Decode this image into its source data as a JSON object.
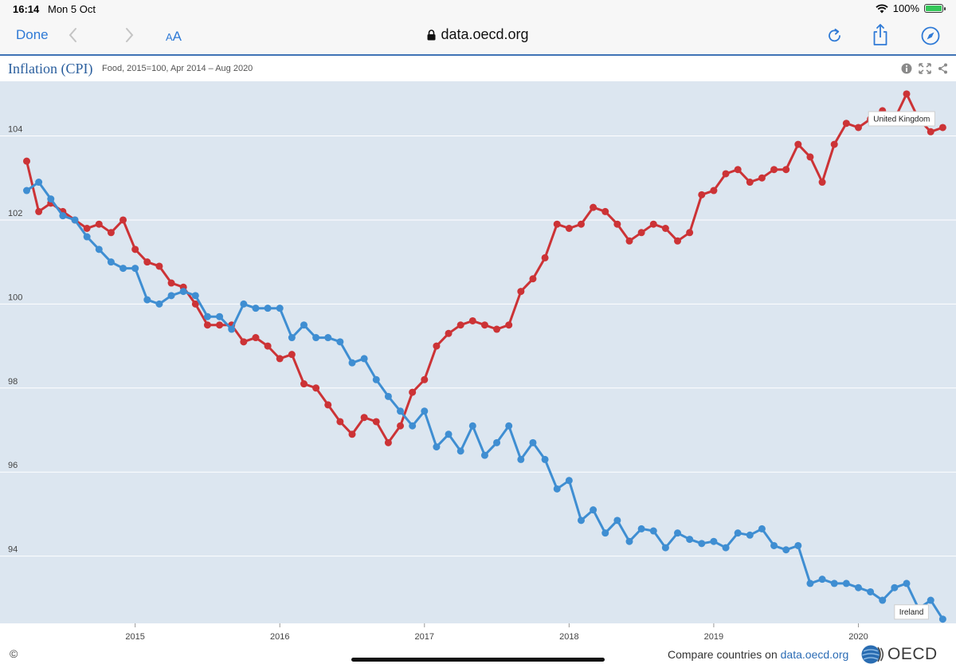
{
  "status_bar": {
    "time": "16:14",
    "date": "Mon 5 Oct",
    "battery": "100%"
  },
  "toolbar": {
    "done_label": "Done",
    "text_size_small": "A",
    "text_size_big": "A",
    "url": "data.oecd.org"
  },
  "chart_header": {
    "title": "Inflation (CPI)",
    "subtitle": "Food, 2015=100, Apr 2014 – Aug 2020"
  },
  "footer": {
    "copyright": "©",
    "compare_text": "Compare countries on ",
    "compare_link": "data.oecd.org",
    "logo_text": "OECD"
  },
  "colors": {
    "uk": "#cc3336",
    "ireland": "#3f8ed2",
    "plot_bg": "#dce6f0",
    "accent": "#2f7ad6"
  },
  "icons": {
    "wifi": "wifi-icon",
    "battery": "battery-icon",
    "lock": "lock-icon",
    "reload": "reload-icon",
    "share": "share-icon",
    "compass": "compass-icon",
    "info": "info-icon",
    "fullscreen": "fullscreen-icon",
    "share_small": "share-icon"
  },
  "chart_data": {
    "type": "line",
    "title": "Inflation (CPI)",
    "subtitle": "Food, 2015=100, Apr 2014 – Aug 2020",
    "x_start": "2014-04",
    "x_ticks": [
      "2015",
      "2016",
      "2017",
      "2018",
      "2019",
      "2020"
    ],
    "y_ticks": [
      94,
      96,
      98,
      100,
      102,
      104
    ],
    "ylim": [
      92.4,
      105.3
    ],
    "grid": true,
    "series": [
      {
        "name": "United Kingdom",
        "color": "#cc3336",
        "values": [
          103.4,
          102.2,
          102.4,
          102.2,
          102.0,
          101.8,
          101.9,
          101.7,
          102.0,
          101.3,
          101.0,
          100.9,
          100.5,
          100.4,
          100.0,
          99.5,
          99.5,
          99.5,
          99.1,
          99.2,
          99.0,
          98.7,
          98.8,
          98.1,
          98.0,
          97.6,
          97.2,
          96.9,
          97.3,
          97.2,
          96.7,
          97.1,
          97.9,
          98.2,
          99.0,
          99.3,
          99.5,
          99.6,
          99.5,
          99.4,
          99.5,
          100.3,
          100.6,
          101.1,
          101.9,
          101.8,
          101.9,
          102.3,
          102.2,
          101.9,
          101.5,
          101.7,
          101.9,
          101.8,
          101.5,
          101.7,
          102.6,
          102.7,
          103.1,
          103.2,
          102.9,
          103.0,
          103.2,
          103.2,
          103.8,
          103.5,
          102.9,
          103.8,
          104.3,
          104.2,
          104.4,
          104.6,
          104.4,
          105.0,
          104.4,
          104.1,
          104.2
        ]
      },
      {
        "name": "Ireland",
        "color": "#3f8ed2",
        "values": [
          102.7,
          102.9,
          102.5,
          102.1,
          102.0,
          101.6,
          101.3,
          101.0,
          100.85,
          100.85,
          100.1,
          100.0,
          100.2,
          100.3,
          100.2,
          99.7,
          99.7,
          99.4,
          100.0,
          99.9,
          99.9,
          99.9,
          99.2,
          99.5,
          99.2,
          99.2,
          99.1,
          98.6,
          98.7,
          98.2,
          97.8,
          97.45,
          97.1,
          97.45,
          96.6,
          96.9,
          96.5,
          97.1,
          96.4,
          96.7,
          97.1,
          96.3,
          96.7,
          96.3,
          95.6,
          95.8,
          94.85,
          95.1,
          94.55,
          94.85,
          94.35,
          94.65,
          94.6,
          94.2,
          94.55,
          94.4,
          94.3,
          94.35,
          94.2,
          94.55,
          94.5,
          94.65,
          94.25,
          94.15,
          94.25,
          93.35,
          93.45,
          93.35,
          93.35,
          93.25,
          93.15,
          92.95,
          93.25,
          93.35,
          92.75,
          92.95,
          92.5
        ]
      }
    ]
  }
}
